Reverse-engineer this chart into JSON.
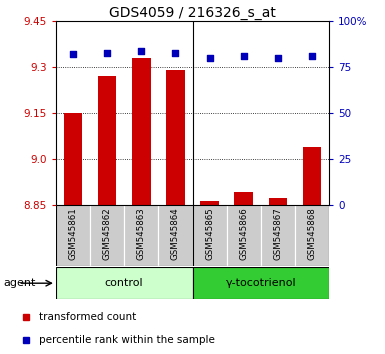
{
  "title": "GDS4059 / 216326_s_at",
  "samples": [
    "GSM545861",
    "GSM545862",
    "GSM545863",
    "GSM545864",
    "GSM545865",
    "GSM545866",
    "GSM545867",
    "GSM545868"
  ],
  "transformed_counts": [
    9.15,
    9.27,
    9.33,
    9.29,
    8.865,
    8.895,
    8.875,
    9.04
  ],
  "percentile_ranks": [
    82,
    83,
    84,
    83,
    80,
    81,
    80,
    81
  ],
  "ylim_left": [
    8.85,
    9.45
  ],
  "ylim_right": [
    0,
    100
  ],
  "yticks_left": [
    8.85,
    9.0,
    9.15,
    9.3,
    9.45
  ],
  "yticks_right": [
    0,
    25,
    50,
    75,
    100
  ],
  "bar_color": "#cc0000",
  "scatter_color": "#0000bb",
  "groups": [
    {
      "label": "control",
      "indices": [
        0,
        1,
        2,
        3
      ],
      "bg_color": "#ccffcc"
    },
    {
      "label": "γ-tocotrienol",
      "indices": [
        4,
        5,
        6,
        7
      ],
      "bg_color": "#33cc33"
    }
  ],
  "agent_label": "agent",
  "legend_bar_label": "transformed count",
  "legend_scatter_label": "percentile rank within the sample",
  "sample_bg_color": "#cccccc",
  "title_fontsize": 10,
  "tick_fontsize": 7.5,
  "label_fontsize": 8
}
